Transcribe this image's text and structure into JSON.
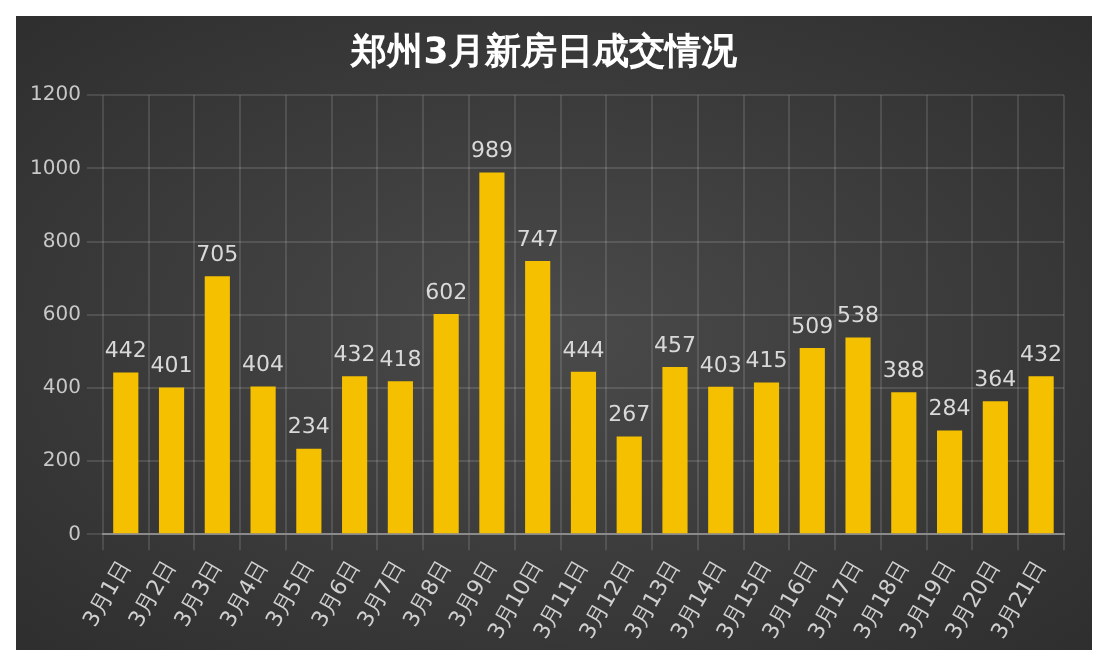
{
  "chart_data": {
    "type": "bar",
    "title": "郑州3月新房日成交情况",
    "categories": [
      "3月1日",
      "3月2日",
      "3月3日",
      "3月4日",
      "3月5日",
      "3月6日",
      "3月7日",
      "3月8日",
      "3月9日",
      "3月10日",
      "3月11日",
      "3月12日",
      "3月13日",
      "3月14日",
      "3月15日",
      "3月16日",
      "3月17日",
      "3月18日",
      "3月19日",
      "3月20日",
      "3月21日"
    ],
    "values": [
      442,
      401,
      705,
      404,
      234,
      432,
      418,
      602,
      989,
      747,
      444,
      267,
      457,
      403,
      415,
      509,
      538,
      388,
      284,
      364,
      432
    ],
    "color": "#f5c000",
    "ylim": [
      0,
      1200
    ],
    "yticks": [
      0,
      200,
      400,
      600,
      800,
      1000,
      1200
    ],
    "grid": true,
    "data_labels": true,
    "legend": false
  }
}
